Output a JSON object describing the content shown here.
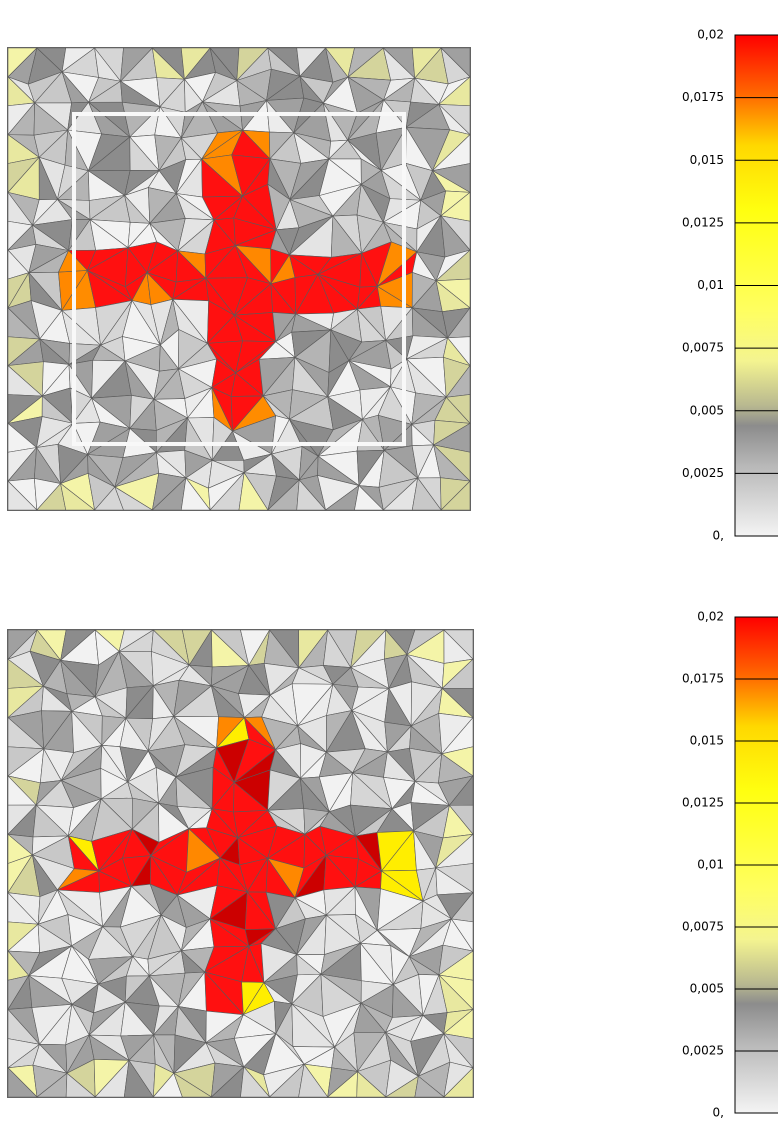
{
  "panels": [
    {
      "legend": {
        "ticks": [
          "0,02",
          "0,0175",
          "0,015",
          "0,0125",
          "0,01",
          "0,0075",
          "0,005",
          "0,0025",
          "0,"
        ]
      }
    },
    {
      "legend": {
        "ticks": [
          "0,02",
          "0,0175",
          "0,015",
          "0,0125",
          "0,01",
          "0,0075",
          "0,005",
          "0,0025",
          "0,"
        ]
      }
    }
  ]
}
